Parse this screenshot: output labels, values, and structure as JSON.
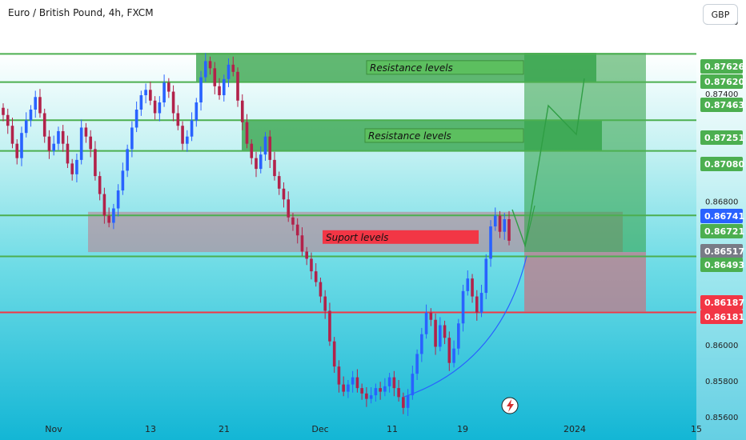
{
  "header": {
    "title": "Euro / British Pound, 4h, FXCM",
    "currency_button": "GBP"
  },
  "colors": {
    "bg_top": "#ffffff",
    "bg_mid": "#7fe3ea",
    "bg_bottom": "#12b7d6",
    "up_candle": "#2962ff",
    "down_candle": "#b2224a",
    "resistance_green": "#4caf50",
    "support_red": "#f23645",
    "current_price_blue": "#2962ff",
    "gray_tag": "#787b86"
  },
  "chart_data": {
    "type": "candlestick",
    "title": "Euro / British Pound, 4h, FXCM",
    "currency": "GBP",
    "y_axis": {
      "range": [
        0.8548,
        0.8792
      ],
      "ticks": [
        "0.87800",
        "0.87400",
        "0.87000",
        "0.86800",
        "0.86000",
        "0.85800",
        "0.85600"
      ]
    },
    "x_axis": {
      "ticks": [
        "Nov",
        "13",
        "21",
        "Dec",
        "11",
        "19",
        "2024",
        "15"
      ]
    },
    "horizontal_levels": [
      {
        "price": 0.87626,
        "label": "0.87626",
        "color": "#4caf50"
      },
      {
        "price": 0.8762,
        "label": "0.87620",
        "color": "#4caf50"
      },
      {
        "price": 0.87463,
        "label": "0.87463",
        "color": "#4caf50"
      },
      {
        "price": 0.87251,
        "label": "0.87251",
        "color": "#4caf50"
      },
      {
        "price": 0.8708,
        "label": "0.87080",
        "color": "#4caf50"
      },
      {
        "price": 0.86741,
        "label": "0.86741",
        "color": "#2962ff"
      },
      {
        "price": 0.86721,
        "label": "0.86721",
        "color": "#4caf50"
      },
      {
        "price": 0.86517,
        "label": "0.86517",
        "color": "#787b86"
      },
      {
        "price": 0.86493,
        "label": "0.86493",
        "color": "#4caf50"
      },
      {
        "price": 0.86187,
        "label": "0.86187",
        "color": "#f23645"
      },
      {
        "price": 0.86181,
        "label": "0.86181",
        "color": "#f23645"
      }
    ],
    "zones": [
      {
        "label": "Resistance levels",
        "top": 0.87626,
        "bottom": 0.87463,
        "type": "resistance"
      },
      {
        "label": "Resistance levels",
        "top": 0.87251,
        "bottom": 0.8708,
        "type": "resistance"
      },
      {
        "label": "Suport levels",
        "top": 0.86741,
        "bottom": 0.86517,
        "type": "support"
      }
    ],
    "close_series": [
      0.8728,
      0.8722,
      0.8712,
      0.8704,
      0.8718,
      0.8725,
      0.8731,
      0.8738,
      0.8729,
      0.8716,
      0.8708,
      0.8712,
      0.8719,
      0.8712,
      0.8701,
      0.8695,
      0.8703,
      0.8721,
      0.8716,
      0.8709,
      0.8694,
      0.8684,
      0.8672,
      0.8668,
      0.8676,
      0.8686,
      0.8697,
      0.8709,
      0.8721,
      0.8731,
      0.8739,
      0.8742,
      0.8736,
      0.8729,
      0.8735,
      0.8746,
      0.8741,
      0.8729,
      0.8722,
      0.8712,
      0.8716,
      0.8725,
      0.8735,
      0.8749,
      0.8758,
      0.8754,
      0.8744,
      0.8739,
      0.8748,
      0.8756,
      0.8752,
      0.8736,
      0.8724,
      0.8712,
      0.8704,
      0.8698,
      0.8706,
      0.8716,
      0.8703,
      0.8694,
      0.8687,
      0.8681,
      0.8671,
      0.8667,
      0.8661,
      0.8652,
      0.8648,
      0.8641,
      0.8635,
      0.8627,
      0.8619,
      0.8602,
      0.8588,
      0.8578,
      0.8574,
      0.8578,
      0.8582,
      0.8576,
      0.8573,
      0.857,
      0.8572,
      0.8576,
      0.8574,
      0.8577,
      0.8582,
      0.8576,
      0.8571,
      0.8565,
      0.8572,
      0.8584,
      0.8595,
      0.8606,
      0.8618,
      0.8614,
      0.8599,
      0.8611,
      0.8604,
      0.859,
      0.8598,
      0.8612,
      0.863,
      0.8637,
      0.8627,
      0.8618,
      0.8629,
      0.8648,
      0.8666,
      0.8672,
      0.8663,
      0.867,
      0.8658
    ]
  }
}
